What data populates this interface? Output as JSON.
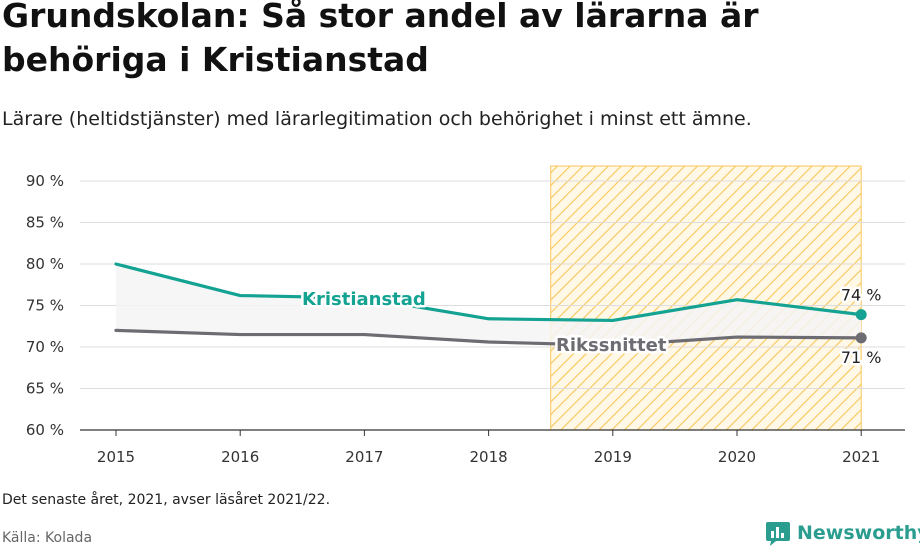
{
  "title": "Grundskolan: Så stor andel av lärarna är behöriga i Kristianstad",
  "subtitle": "Lärare (heltidstjänster) med lärarlegitimation och behörighet i minst ett ämne.",
  "note": "Det senaste året, 2021, avser läsåret 2021/22.",
  "source": "Källa: Kolada",
  "brand": "Newsworthy",
  "colors": {
    "kristianstad": "#14a393",
    "riksnittet": "#6e6c73",
    "highlight": "#f7c65a",
    "band": "#f4f4f4"
  },
  "chart_data": {
    "type": "line",
    "title": "Grundskolan: Så stor andel av lärarna är behöriga i Kristianstad",
    "x": [
      "2015",
      "2016",
      "2017",
      "2018",
      "2019",
      "2020",
      "2021"
    ],
    "series": [
      {
        "name": "Kristianstad",
        "values": [
          80.0,
          76.2,
          75.9,
          73.4,
          73.2,
          75.7,
          73.9
        ],
        "end_label": "74 %"
      },
      {
        "name": "Rikssnittet",
        "values": [
          72.0,
          71.5,
          71.5,
          70.6,
          70.2,
          71.2,
          71.1
        ],
        "end_label": "71 %"
      }
    ],
    "yticks": [
      "60 %",
      "65 %",
      "70 %",
      "75 %",
      "80 %",
      "85 %",
      "90 %"
    ],
    "ytick_values": [
      60,
      65,
      70,
      75,
      80,
      85,
      90
    ],
    "ylim": [
      60,
      92
    ],
    "highlight_range": [
      "2019",
      "2021"
    ],
    "grid": true,
    "xlabel": "",
    "ylabel": ""
  }
}
